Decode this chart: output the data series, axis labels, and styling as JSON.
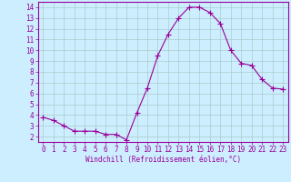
{
  "x": [
    0,
    1,
    2,
    3,
    4,
    5,
    6,
    7,
    8,
    9,
    10,
    11,
    12,
    13,
    14,
    15,
    16,
    17,
    18,
    19,
    20,
    21,
    22,
    23
  ],
  "y": [
    3.8,
    3.5,
    3.0,
    2.5,
    2.5,
    2.5,
    2.2,
    2.2,
    1.7,
    4.2,
    6.5,
    9.5,
    11.5,
    13.0,
    14.0,
    14.0,
    13.5,
    12.5,
    10.0,
    8.8,
    8.6,
    7.3,
    6.5,
    6.4
  ],
  "line_color": "#990099",
  "marker": "+",
  "marker_size": 4,
  "bg_color": "#cceeff",
  "grid_color": "#aacccc",
  "xlabel": "Windchill (Refroidissement éolien,°C)",
  "xlabel_color": "#990099",
  "tick_color": "#990099",
  "xlim": [
    -0.5,
    23.5
  ],
  "ylim": [
    1.5,
    14.5
  ],
  "yticks": [
    2,
    3,
    4,
    5,
    6,
    7,
    8,
    9,
    10,
    11,
    12,
    13,
    14
  ],
  "xticks": [
    0,
    1,
    2,
    3,
    4,
    5,
    6,
    7,
    8,
    9,
    10,
    11,
    12,
    13,
    14,
    15,
    16,
    17,
    18,
    19,
    20,
    21,
    22,
    23
  ],
  "font_family": "monospace",
  "label_fontsize": 5.5,
  "tick_fontsize": 5.5
}
